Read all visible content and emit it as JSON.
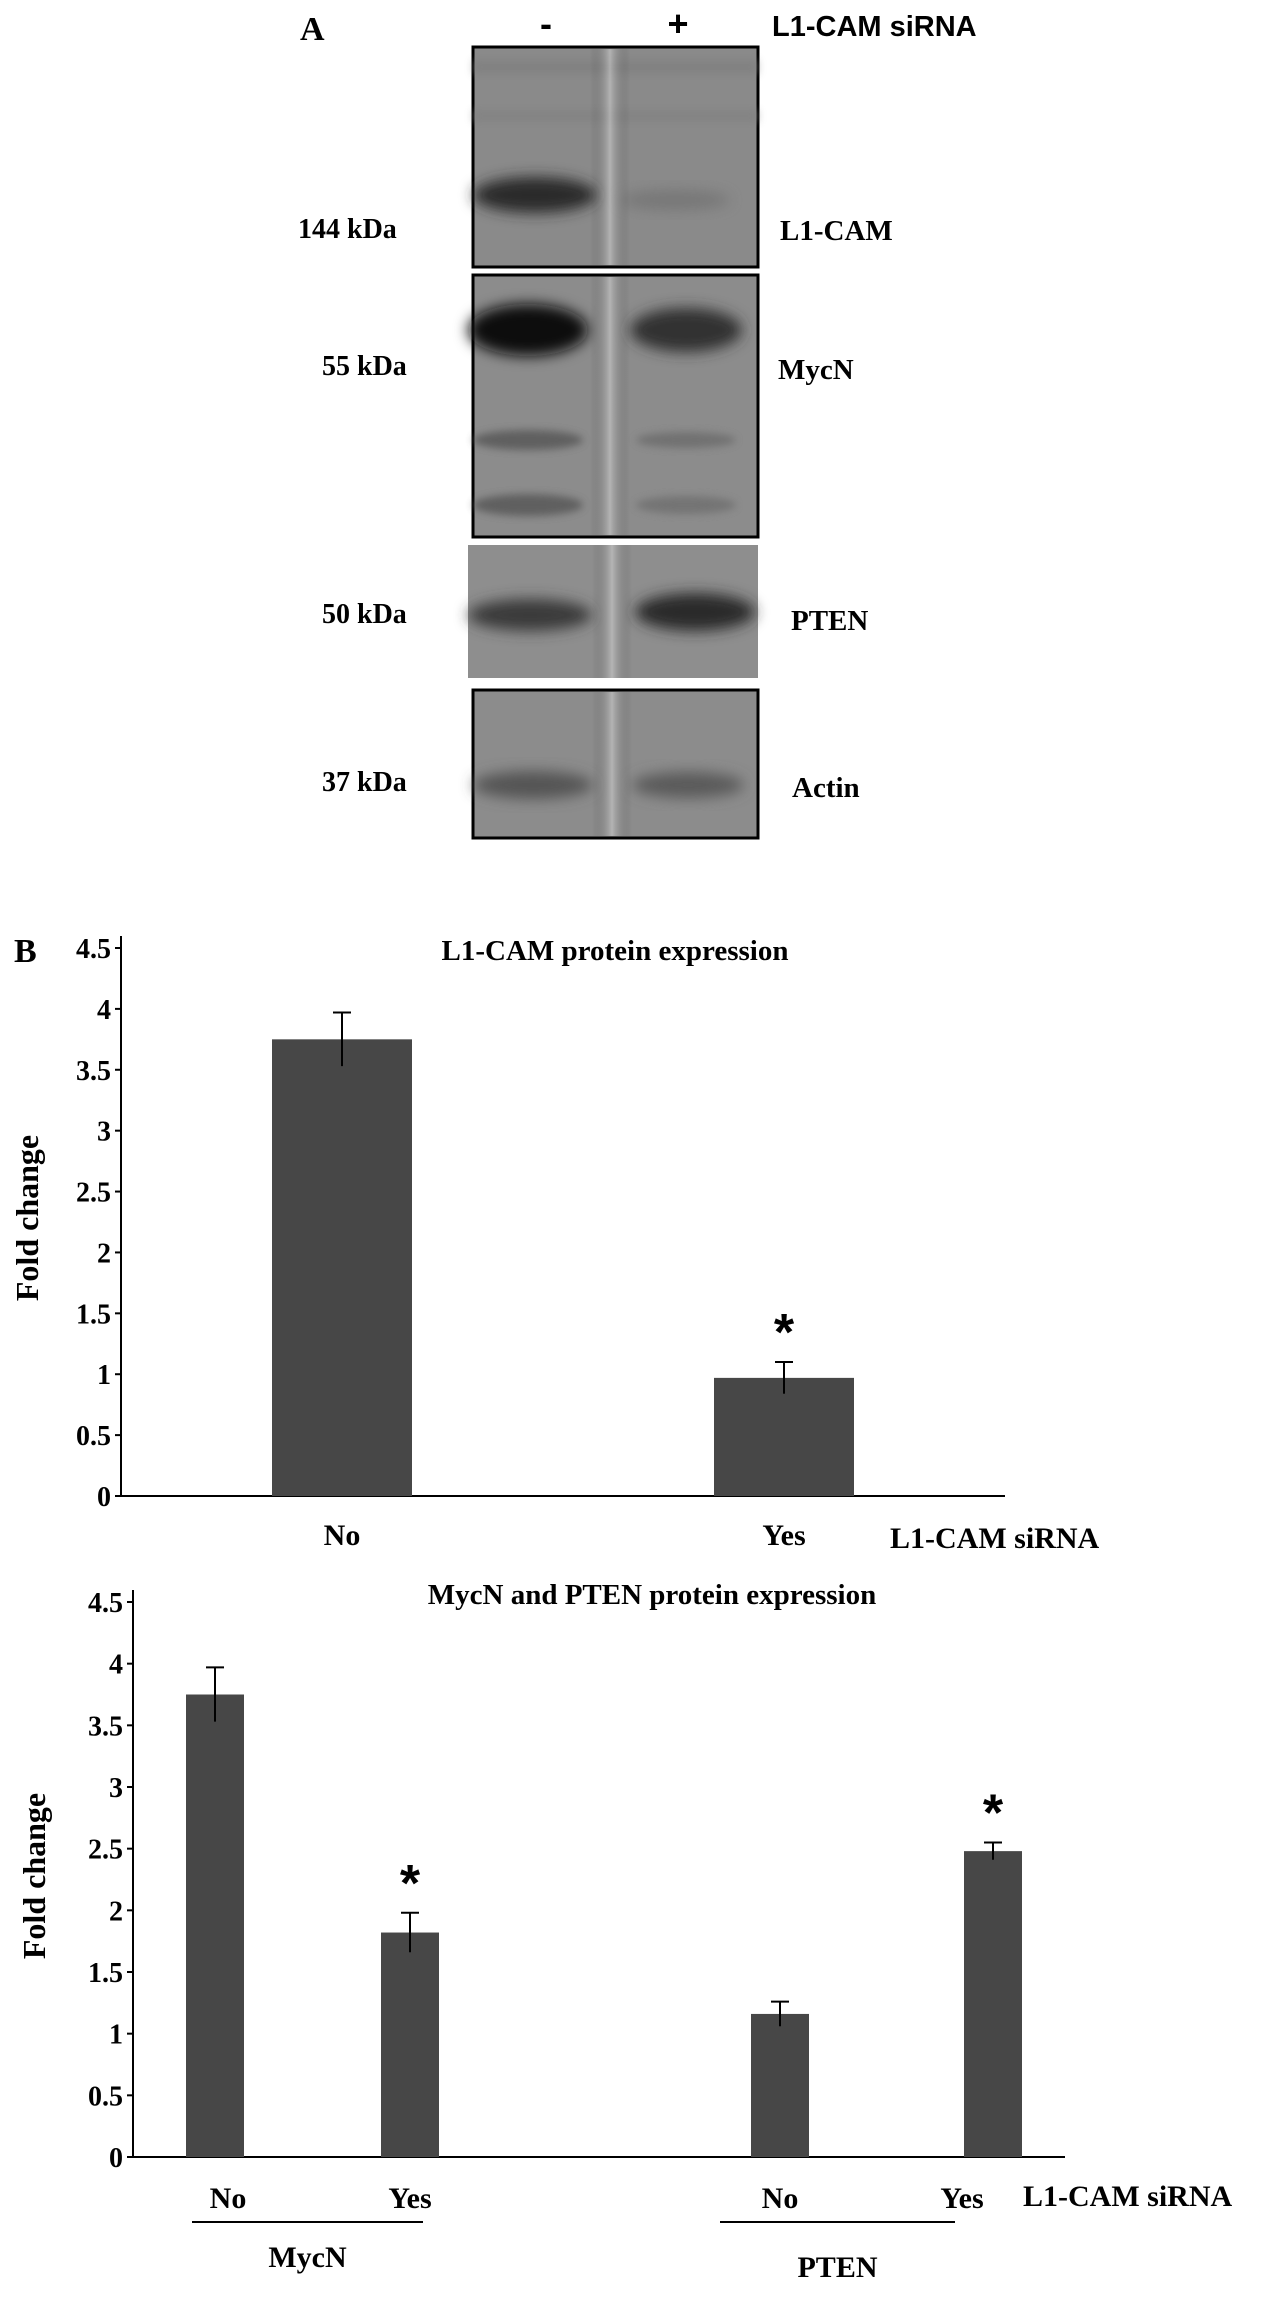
{
  "panel_a": {
    "label": "A",
    "lanes": [
      "-",
      "+"
    ],
    "treatment": "L1-CAM siRNA",
    "blots": [
      {
        "marker": "144 kDa",
        "protein": "L1-CAM"
      },
      {
        "marker": "55 kDa",
        "protein": "MycN"
      },
      {
        "marker": "50 kDa",
        "protein": "PTEN"
      },
      {
        "marker": "37 kDa",
        "protein": "Actin"
      }
    ]
  },
  "panel_b_label": "B",
  "chart_data": [
    {
      "type": "bar",
      "title": "L1-CAM protein expression",
      "ylabel": "Fold change",
      "xlabel": "L1-CAM siRNA",
      "ylim": [
        0,
        4.5
      ],
      "yticks": [
        "0",
        "0.5",
        "1",
        "1.5",
        "2",
        "2.5",
        "3",
        "3.5",
        "4",
        "4.5"
      ],
      "categories": [
        "No",
        "Yes"
      ],
      "values": [
        3.75,
        0.97
      ],
      "errors": [
        0.22,
        0.13
      ],
      "significance": [
        "",
        "*"
      ],
      "bar_color": "#474747"
    },
    {
      "type": "bar",
      "title": "MycN and PTEN protein expression",
      "ylabel": "Fold change",
      "xlabel": "L1-CAM siRNA",
      "ylim": [
        0,
        4.5
      ],
      "yticks": [
        "0",
        "0.5",
        "1",
        "1.5",
        "2",
        "2.5",
        "3",
        "3.5",
        "4",
        "4.5"
      ],
      "categories": [
        "No",
        "Yes",
        "No",
        "Yes"
      ],
      "groups": [
        "MycN",
        "PTEN"
      ],
      "values": [
        3.75,
        1.82,
        1.16,
        2.48
      ],
      "errors": [
        0.22,
        0.16,
        0.1,
        0.07
      ],
      "significance": [
        "",
        "*",
        "",
        "*"
      ],
      "bar_color": "#474747"
    }
  ]
}
